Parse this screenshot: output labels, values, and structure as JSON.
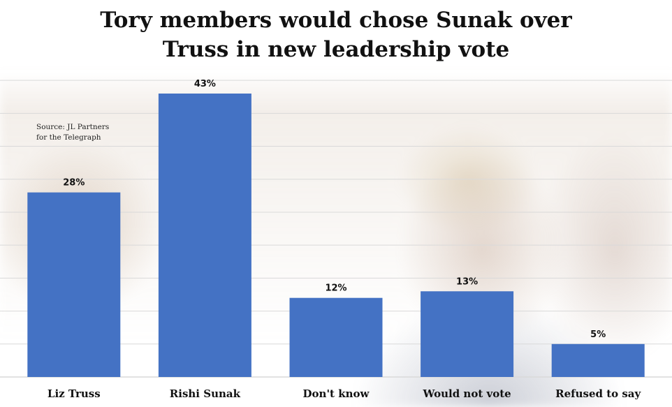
{
  "chart_data": {
    "type": "bar",
    "title": "Tory members would chose Sunak over\nTruss in new leadership vote",
    "source": "Source: JL Partners\nfor the Telegraph",
    "categories": [
      "Liz Truss",
      "Rishi Sunak",
      "Don't know",
      "Would not vote",
      "Refused to say"
    ],
    "values": [
      28,
      43,
      12,
      13,
      5
    ],
    "data_labels": [
      "28%",
      "43%",
      "12%",
      "13%",
      "5%"
    ],
    "ylim": [
      0,
      45
    ],
    "grid": true,
    "bar_color": "#4472C4",
    "grid_color": "#d9d9d9"
  }
}
